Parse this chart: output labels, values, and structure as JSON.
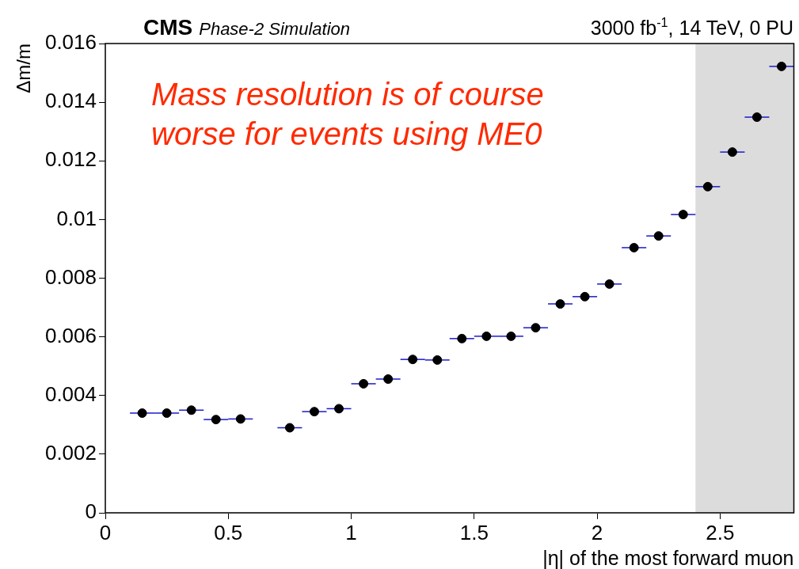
{
  "chart_data": {
    "type": "scatter",
    "title": "CMS",
    "subtitle": "Phase-2 Simulation",
    "xlabel": "|η| of the most forward muon",
    "ylabel": "Δm/m",
    "annotations": [
      "3000 fb$^{-1}$, 14 TeV, 0 PU",
      "Mass resolution is of course worse for events using ME0"
    ],
    "x": [
      0.15,
      0.25,
      0.35,
      0.45,
      0.55,
      0.75,
      0.85,
      0.95,
      1.05,
      1.15,
      1.25,
      1.35,
      1.45,
      1.55,
      1.65,
      1.75,
      1.85,
      1.95,
      2.05,
      2.15,
      2.25,
      2.35,
      2.45,
      2.55,
      2.65,
      2.75
    ],
    "series": [
      {
        "color": "#000000",
        "values": [
          0.0034,
          0.0034,
          0.0035,
          0.00318,
          0.0032,
          0.0029,
          0.00345,
          0.00355,
          0.0044,
          0.00456,
          0.00523,
          0.00521,
          0.00594,
          0.00602,
          0.00602,
          0.00631,
          0.00712,
          0.00737,
          0.0078,
          0.00904,
          0.00944,
          0.01017,
          0.01112,
          0.0123,
          0.01349,
          0.01522
        ],
        "xerrors": [
          0.05,
          0.05,
          0.05,
          0.05,
          0.05,
          0.05,
          0.05,
          0.05,
          0.05,
          0.05,
          0.05,
          0.05,
          0.05,
          0.05,
          0.05,
          0.05,
          0.05,
          0.05,
          0.05,
          0.05,
          0.05,
          0.05,
          0.05,
          0.05,
          0.05,
          0.05
        ]
      }
    ],
    "xlim": [
      0,
      2.8
    ],
    "xticks": [
      0,
      0.5,
      1,
      1.5,
      2,
      2.5
    ],
    "ylim": [
      0,
      0.016
    ],
    "yticks": [
      0,
      0.002,
      0.004,
      0.006,
      0.008,
      0.01,
      0.012,
      0.014,
      0.016
    ],
    "bands": [
      {
        "axis": "x",
        "from": 2.4,
        "to": 2.8,
        "color": "#dcdcdc"
      }
    ],
    "marker": "circle",
    "grid": false,
    "legend": false
  }
}
